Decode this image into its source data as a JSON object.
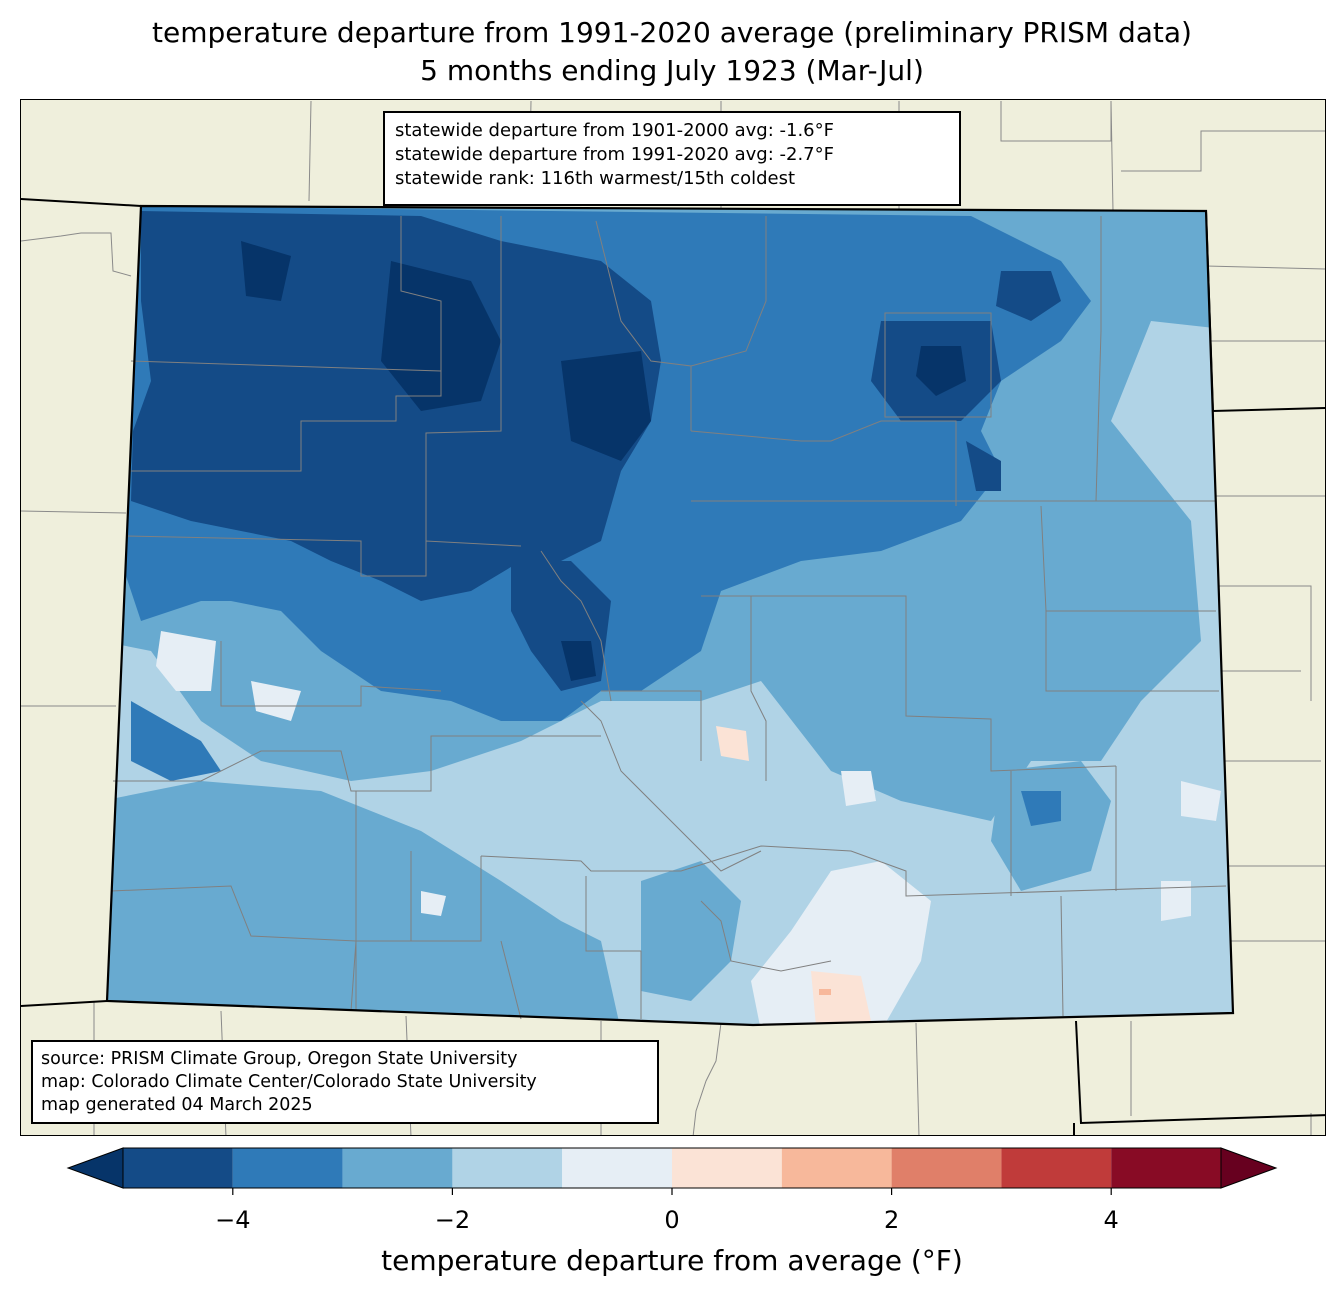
{
  "title": {
    "line1": "temperature departure from 1991-2020 average (preliminary PRISM data)",
    "line2": "5 months ending July 1923 (Mar-Jul)"
  },
  "stats": {
    "line1": "statewide departure from 1901-2000 avg: -1.6°F",
    "line2": "statewide departure from 1991-2020 avg: -2.7°F",
    "line3": "statewide rank: 116th warmest/15th coldest"
  },
  "source": {
    "line1": "source: PRISM Climate Group, Oregon State University",
    "line2": "map: Colorado Climate Center/Colorado State University",
    "line3": "map generated 04 March 2025"
  },
  "colorbar": {
    "label": "temperature departure from average (°F)",
    "min": -5,
    "max": 5,
    "ticks": [
      -4,
      -2,
      0,
      2,
      4
    ],
    "tick_labels": [
      "−4",
      "−2",
      "0",
      "2",
      "4"
    ],
    "bins": [
      {
        "from": -5,
        "to": -4,
        "color": "#144b87"
      },
      {
        "from": -4,
        "to": -3,
        "color": "#2f7ab8"
      },
      {
        "from": -3,
        "to": -2,
        "color": "#68aad0"
      },
      {
        "from": -2,
        "to": -1,
        "color": "#b0d3e6"
      },
      {
        "from": -1,
        "to": 0,
        "color": "#e6eef5"
      },
      {
        "from": 0,
        "to": 1,
        "color": "#fbe3d6"
      },
      {
        "from": 1,
        "to": 2,
        "color": "#f7b89b"
      },
      {
        "from": 2,
        "to": 3,
        "color": "#e07f69"
      },
      {
        "from": 3,
        "to": 4,
        "color": "#c03b3a"
      },
      {
        "from": 4,
        "to": 5,
        "color": "#880b25"
      }
    ],
    "under_color": "#063469",
    "over_color": "#67001f"
  },
  "map": {
    "background_color": "#efefdc",
    "state_border_color": "#000000",
    "county_line_color": "#808080"
  }
}
